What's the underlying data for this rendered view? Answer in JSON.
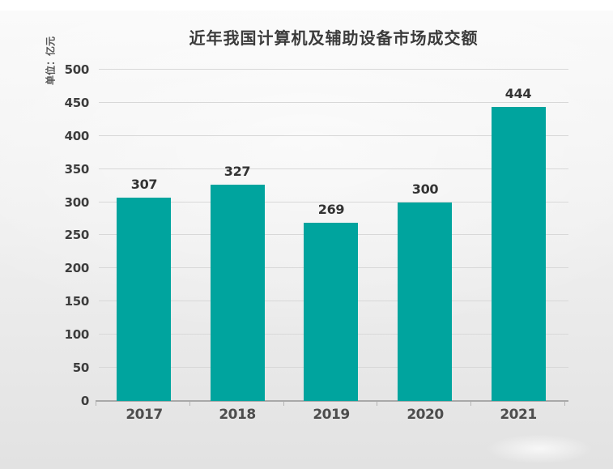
{
  "chart_data": {
    "type": "bar",
    "title": "近年我国计算机及辅助设备市场成交额",
    "unit_label": "单位：亿元",
    "categories": [
      "2017",
      "2018",
      "2019",
      "2020",
      "2021"
    ],
    "values": [
      307,
      327,
      269,
      300,
      444
    ],
    "yticks": [
      0,
      50,
      100,
      150,
      200,
      250,
      300,
      350,
      400,
      450,
      500
    ],
    "ylim": [
      0,
      500
    ],
    "grid": true,
    "legend": "none",
    "colors": {
      "bar": "#00A49E",
      "title": "#3c3c3c",
      "value_label": "#333333",
      "y_tick_label": "#3d3d3d",
      "x_tick_label": "#4d4d4d",
      "unit_label": "#555555",
      "gridline": "#d8d8d8",
      "axis_line": "#a9a9a9",
      "panel_top": "#fafafa",
      "panel_bottom": "#e2e2e2"
    }
  }
}
